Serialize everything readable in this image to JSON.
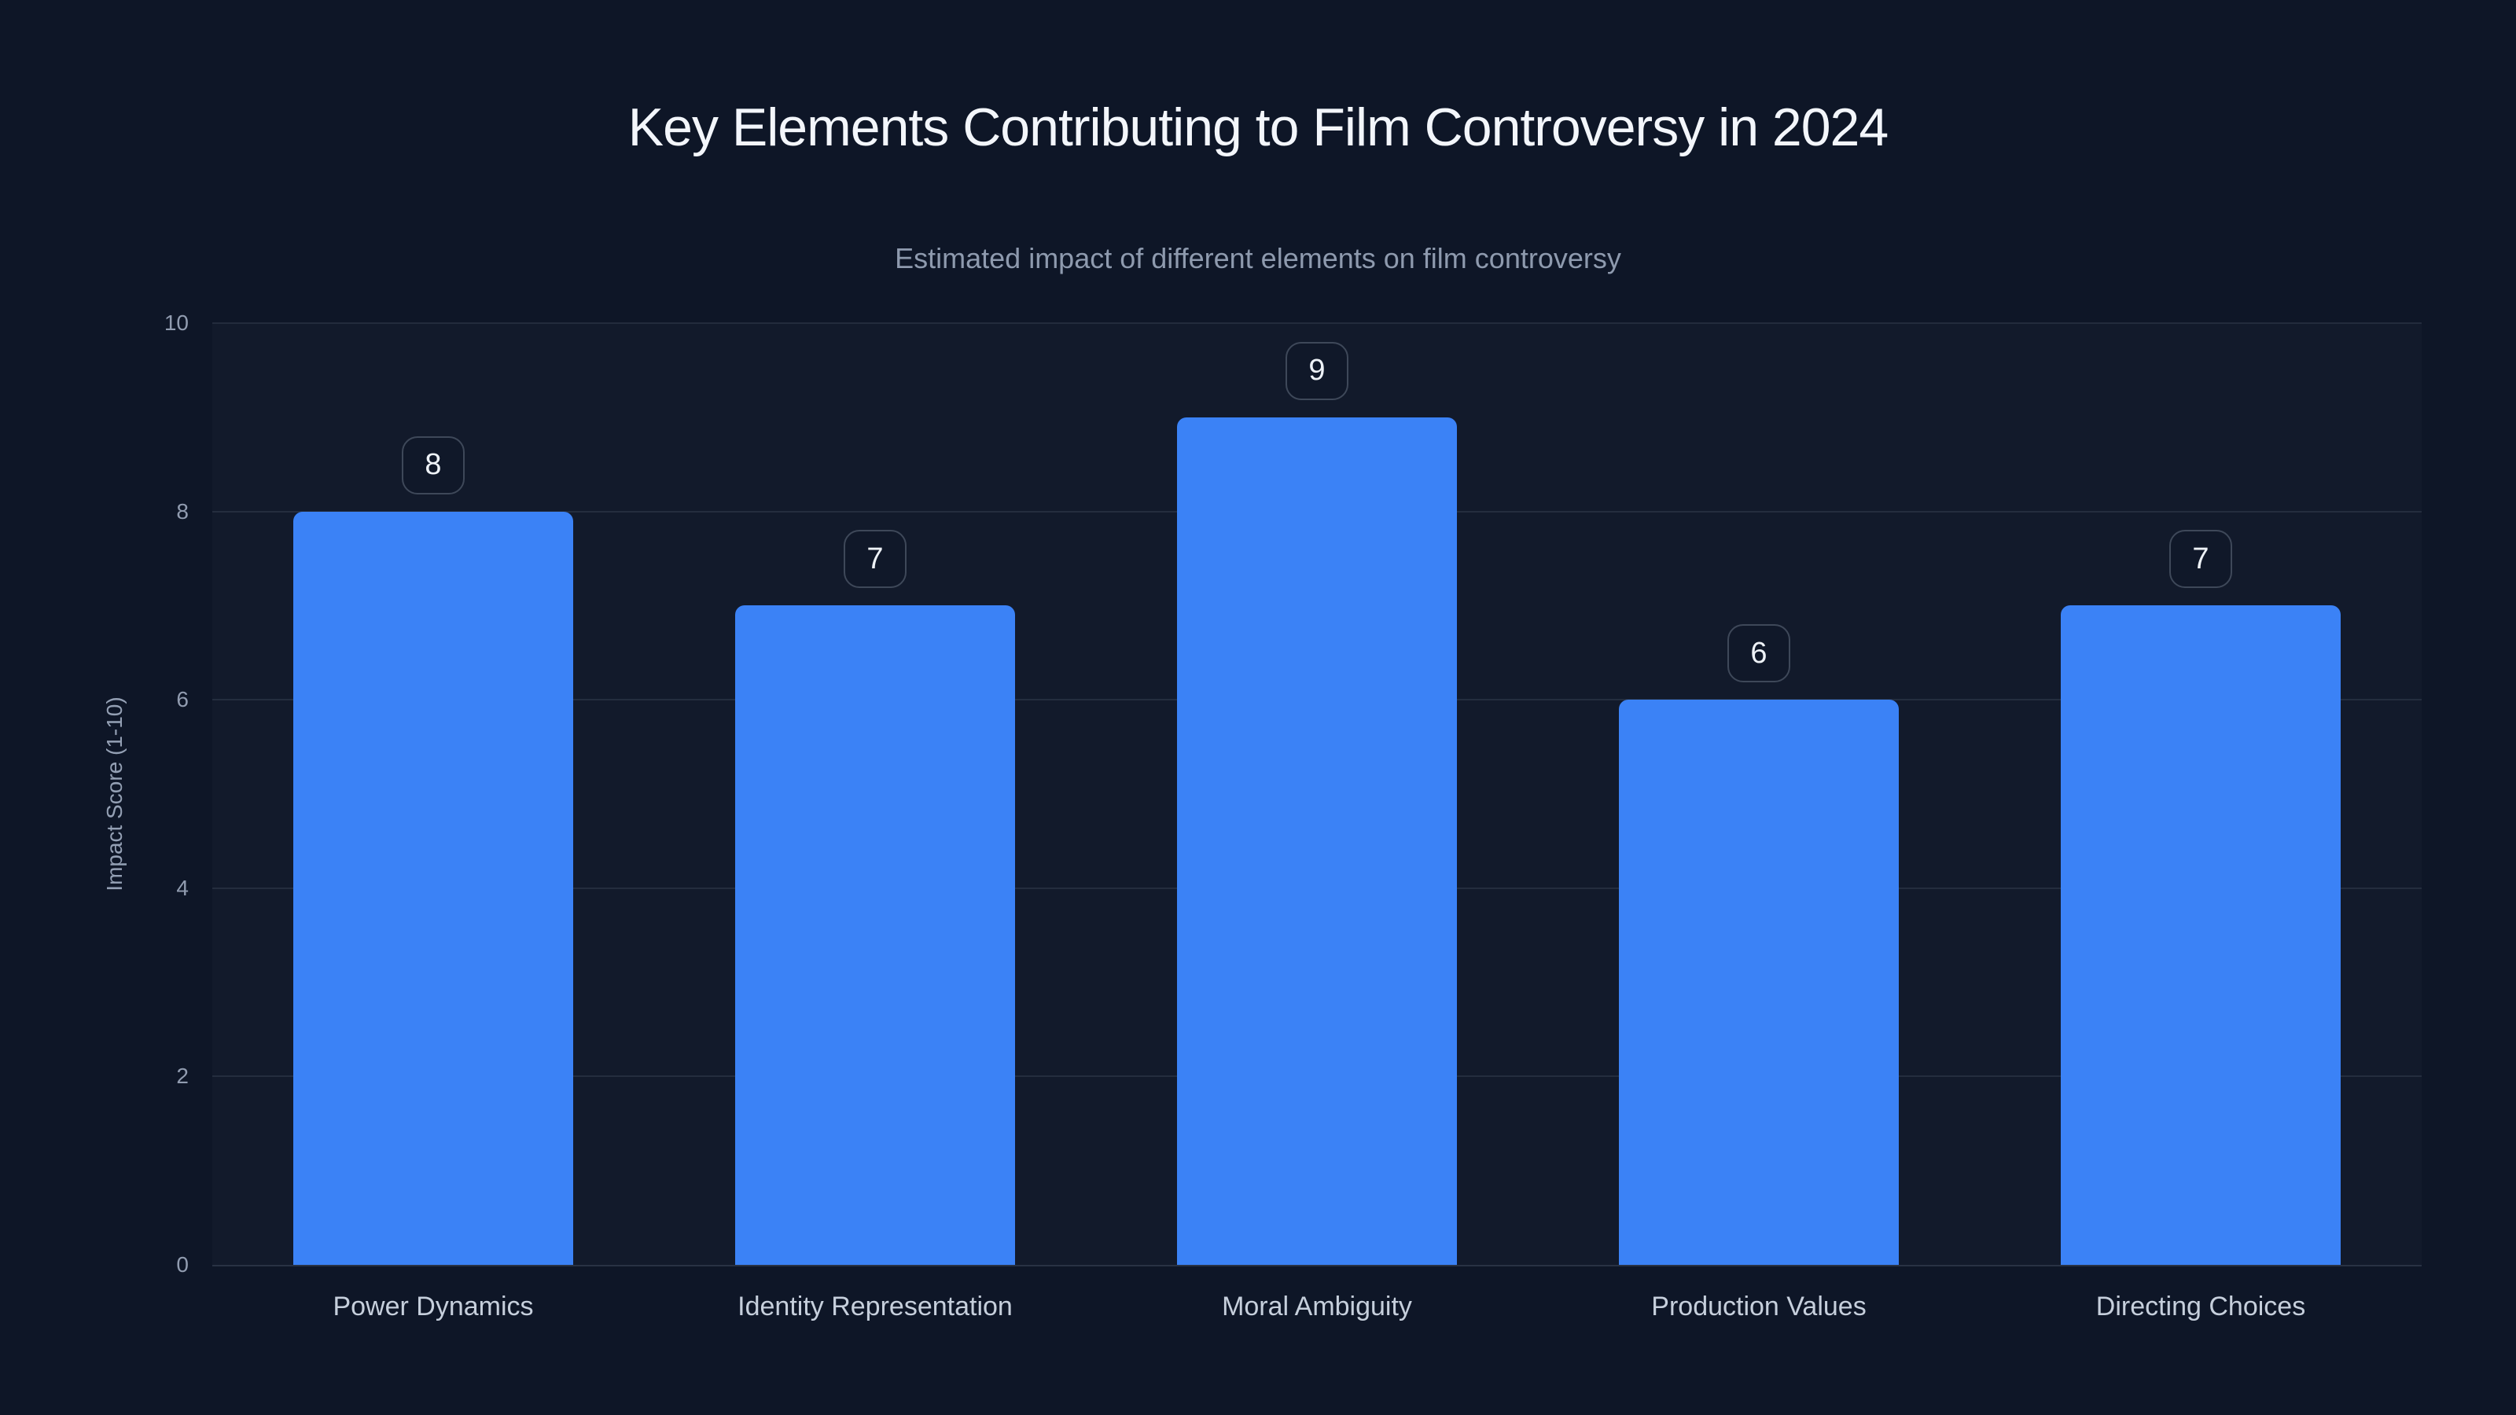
{
  "colors": {
    "background": "#0e1627",
    "bar": "#3b82f6",
    "title_text": "#f3f6fb",
    "subtitle_text": "#8e9aae",
    "axis_text": "#94a0b4",
    "category_text": "#c6cfdc",
    "gridline": "rgba(148,163,184,0.14)",
    "badge_border": "#3e4859",
    "badge_text": "#eef2f7"
  },
  "chart_data": {
    "type": "bar",
    "title": "Key Elements Contributing to Film Controversy in 2024",
    "subtitle": "Estimated impact of different elements on film controversy",
    "categories": [
      "Power Dynamics",
      "Identity Representation",
      "Moral Ambiguity",
      "Production Values",
      "Directing Choices"
    ],
    "values": [
      8,
      7,
      9,
      6,
      7
    ],
    "data_labels": [
      "8",
      "7",
      "9",
      "6",
      "7"
    ],
    "xlabel": "",
    "ylabel": "Impact Score (1-10)",
    "ylim": [
      0,
      10
    ],
    "yticks": [
      0,
      2,
      4,
      6,
      8,
      10
    ],
    "grid": true,
    "legend": false,
    "bar_color": "#3b82f6"
  }
}
